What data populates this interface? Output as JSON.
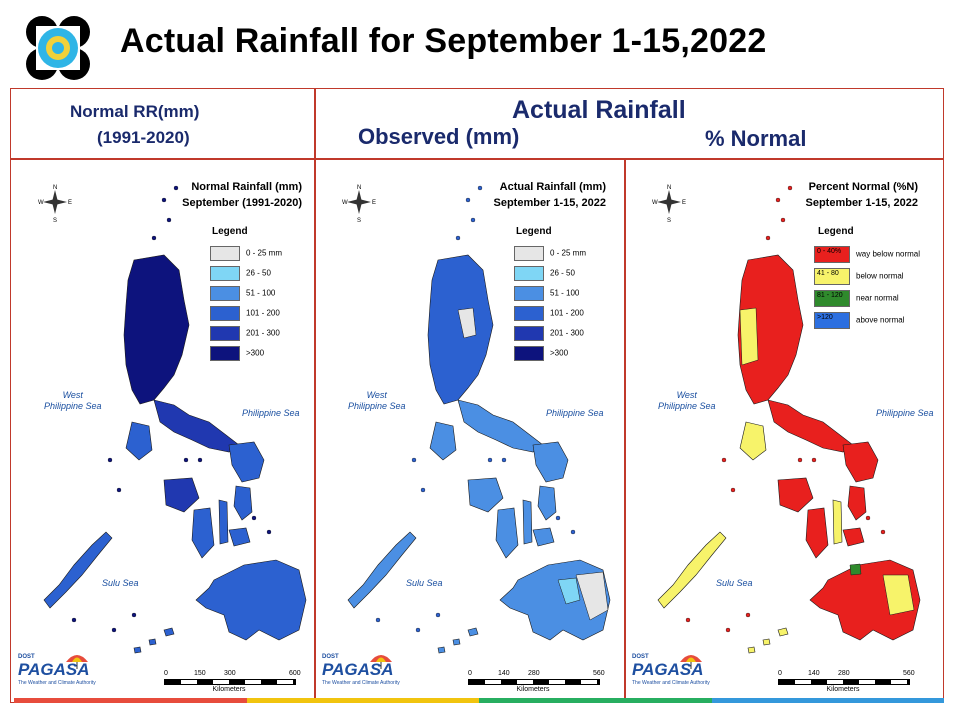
{
  "page": {
    "title": "Actual Rainfall for September 1-15,2022"
  },
  "header": {
    "left_line1": "Normal RR(mm)",
    "left_line2": "(1991-2020)",
    "center_title": "Actual Rainfall",
    "observed_label": "Observed (mm)",
    "percent_label": "% Normal"
  },
  "maps": [
    {
      "title_line1": "Normal Rainfall (mm)",
      "title_line2": "September (1991-2020)",
      "legend_title": "Legend",
      "legend": [
        {
          "label": "0 - 25 mm",
          "color": "#e6e6e6"
        },
        {
          "label": "26 - 50",
          "color": "#7fd6f5"
        },
        {
          "label": "51 - 100",
          "color": "#4b8fe3"
        },
        {
          "label": "101 - 200",
          "color": "#2c61d0"
        },
        {
          "label": "201 - 300",
          "color": "#2038b0"
        },
        {
          "label": ">300",
          "color": "#0d137d"
        }
      ],
      "sea_west_1": "West",
      "sea_west_2": "Philippine Sea",
      "sea_east": "Philippine Sea",
      "sea_sulu": "Sulu Sea",
      "scale_ticks": [
        "0",
        "150",
        "300",
        "600"
      ],
      "scale_unit": "Kilometers"
    },
    {
      "title_line1": "Actual Rainfall (mm)",
      "title_line2": "September 1-15, 2022",
      "legend_title": "Legend",
      "legend": [
        {
          "label": "0 - 25 mm",
          "color": "#e6e6e6"
        },
        {
          "label": "26 - 50",
          "color": "#7fd6f5"
        },
        {
          "label": "51 - 100",
          "color": "#4b8fe3"
        },
        {
          "label": "101 - 200",
          "color": "#2c61d0"
        },
        {
          "label": "201 - 300",
          "color": "#2038b0"
        },
        {
          "label": ">300",
          "color": "#0d137d"
        }
      ],
      "sea_west_1": "West",
      "sea_west_2": "Philippine Sea",
      "sea_east": "Philippine Sea",
      "sea_sulu": "Sulu Sea",
      "scale_ticks": [
        "0",
        "140",
        "280",
        "560"
      ],
      "scale_unit": "Kilometers"
    },
    {
      "title_line1": "Percent Normal (%N)",
      "title_line2": "September 1-15, 2022",
      "legend_title": "Legend",
      "legend": [
        {
          "label": "0 - 40%",
          "desc": "way below normal",
          "color": "#e8201e"
        },
        {
          "label": "41 - 80",
          "desc": "below normal",
          "color": "#f7f36a"
        },
        {
          "label": "81 - 120",
          "desc": "near normal",
          "color": "#2f8a2c"
        },
        {
          "label": ">120",
          "desc": "above normal",
          "color": "#2c6fe0"
        }
      ],
      "sea_west_1": "West",
      "sea_west_2": "Philippine Sea",
      "sea_east": "Philippine Sea",
      "sea_sulu": "Sulu Sea",
      "scale_ticks": [
        "0",
        "140",
        "280",
        "560"
      ],
      "scale_unit": "Kilometers"
    }
  ],
  "brand": {
    "name": "PAGASA",
    "dost": "DOST",
    "tagline": "The Weather and Climate Authority"
  },
  "compass": {
    "n": "N",
    "s": "S",
    "e": "E",
    "w": "W"
  },
  "colors": {
    "title_dark": "#1a2a6c",
    "frame": "#c0392b",
    "bottom_bar": [
      "#e74c3c",
      "#f1c40f",
      "#27ae60",
      "#3498db"
    ]
  }
}
